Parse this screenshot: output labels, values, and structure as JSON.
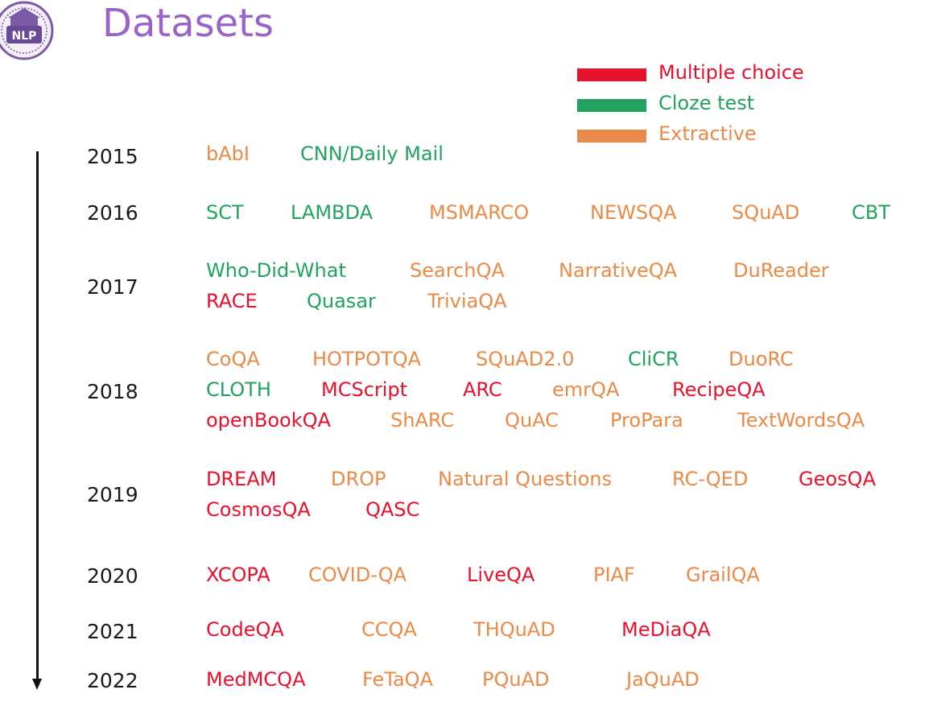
{
  "title": "Datasets",
  "colors": {
    "multiple_choice": "#e8112d",
    "cloze": "#21a35e",
    "extractive": "#ea8a47"
  },
  "legend": [
    {
      "label": "Multiple choice",
      "type": "multiple_choice"
    },
    {
      "label": "Cloze test",
      "type": "cloze"
    },
    {
      "label": "Extractive",
      "type": "extractive"
    }
  ],
  "logo_text": "NLP",
  "years": [
    {
      "year": "2015",
      "datasets": [
        {
          "name": "bAbI",
          "type": "extractive"
        },
        {
          "name": "CNN/Daily Mail",
          "type": "cloze"
        }
      ]
    },
    {
      "year": "2016",
      "datasets": [
        {
          "name": "SCT",
          "type": "cloze"
        },
        {
          "name": "LAMBDA",
          "type": "cloze"
        },
        {
          "name": "MSMARCO",
          "type": "extractive"
        },
        {
          "name": "NEWSQA",
          "type": "extractive"
        },
        {
          "name": "SQuAD",
          "type": "extractive"
        },
        {
          "name": "CBT",
          "type": "cloze"
        }
      ]
    },
    {
      "year": "2017",
      "datasets": [
        {
          "name": "Who-Did-What",
          "type": "cloze"
        },
        {
          "name": "SearchQA",
          "type": "extractive"
        },
        {
          "name": "NarrativeQA",
          "type": "extractive"
        },
        {
          "name": "DuReader",
          "type": "extractive"
        },
        {
          "name": "RACE",
          "type": "multiple_choice"
        },
        {
          "name": "Quasar",
          "type": "cloze"
        },
        {
          "name": "TriviaQA",
          "type": "extractive"
        }
      ]
    },
    {
      "year": "2018",
      "datasets": [
        {
          "name": "CoQA",
          "type": "extractive"
        },
        {
          "name": "HOTPOTQA",
          "type": "extractive"
        },
        {
          "name": "SQuAD2.0",
          "type": "extractive"
        },
        {
          "name": "CliCR",
          "type": "cloze"
        },
        {
          "name": "DuoRC",
          "type": "extractive"
        },
        {
          "name": "CLOTH",
          "type": "cloze"
        },
        {
          "name": "MCScript",
          "type": "multiple_choice"
        },
        {
          "name": "ARC",
          "type": "multiple_choice"
        },
        {
          "name": "emrQA",
          "type": "extractive"
        },
        {
          "name": "RecipeQA",
          "type": "multiple_choice"
        },
        {
          "name": "openBookQA",
          "type": "multiple_choice"
        },
        {
          "name": "ShARC",
          "type": "extractive"
        },
        {
          "name": "QuAC",
          "type": "extractive"
        },
        {
          "name": "ProPara",
          "type": "extractive"
        },
        {
          "name": "TextWordsQA",
          "type": "extractive"
        }
      ]
    },
    {
      "year": "2019",
      "datasets": [
        {
          "name": "DREAM",
          "type": "multiple_choice"
        },
        {
          "name": "DROP",
          "type": "extractive"
        },
        {
          "name": "Natural Questions",
          "type": "extractive"
        },
        {
          "name": "RC-QED",
          "type": "extractive"
        },
        {
          "name": "GeosQA",
          "type": "multiple_choice"
        },
        {
          "name": "CosmosQA",
          "type": "multiple_choice"
        },
        {
          "name": "QASC",
          "type": "multiple_choice"
        }
      ]
    },
    {
      "year": "2020",
      "datasets": [
        {
          "name": "XCOPA",
          "type": "multiple_choice"
        },
        {
          "name": "COVID-QA",
          "type": "extractive"
        },
        {
          "name": "LiveQA",
          "type": "multiple_choice"
        },
        {
          "name": "PIAF",
          "type": "extractive"
        },
        {
          "name": "GrailQA",
          "type": "extractive"
        }
      ]
    },
    {
      "year": "2021",
      "datasets": [
        {
          "name": "CodeQA",
          "type": "multiple_choice"
        },
        {
          "name": "CCQA",
          "type": "extractive"
        },
        {
          "name": "THQuAD",
          "type": "extractive"
        },
        {
          "name": "MeDiaQA",
          "type": "multiple_choice"
        }
      ]
    },
    {
      "year": "2022",
      "datasets": [
        {
          "name": "MedMCQA",
          "type": "multiple_choice"
        },
        {
          "name": "FeTaQA",
          "type": "extractive"
        },
        {
          "name": "PQuAD",
          "type": "extractive"
        },
        {
          "name": "JaQuAD",
          "type": "extractive"
        }
      ]
    }
  ]
}
